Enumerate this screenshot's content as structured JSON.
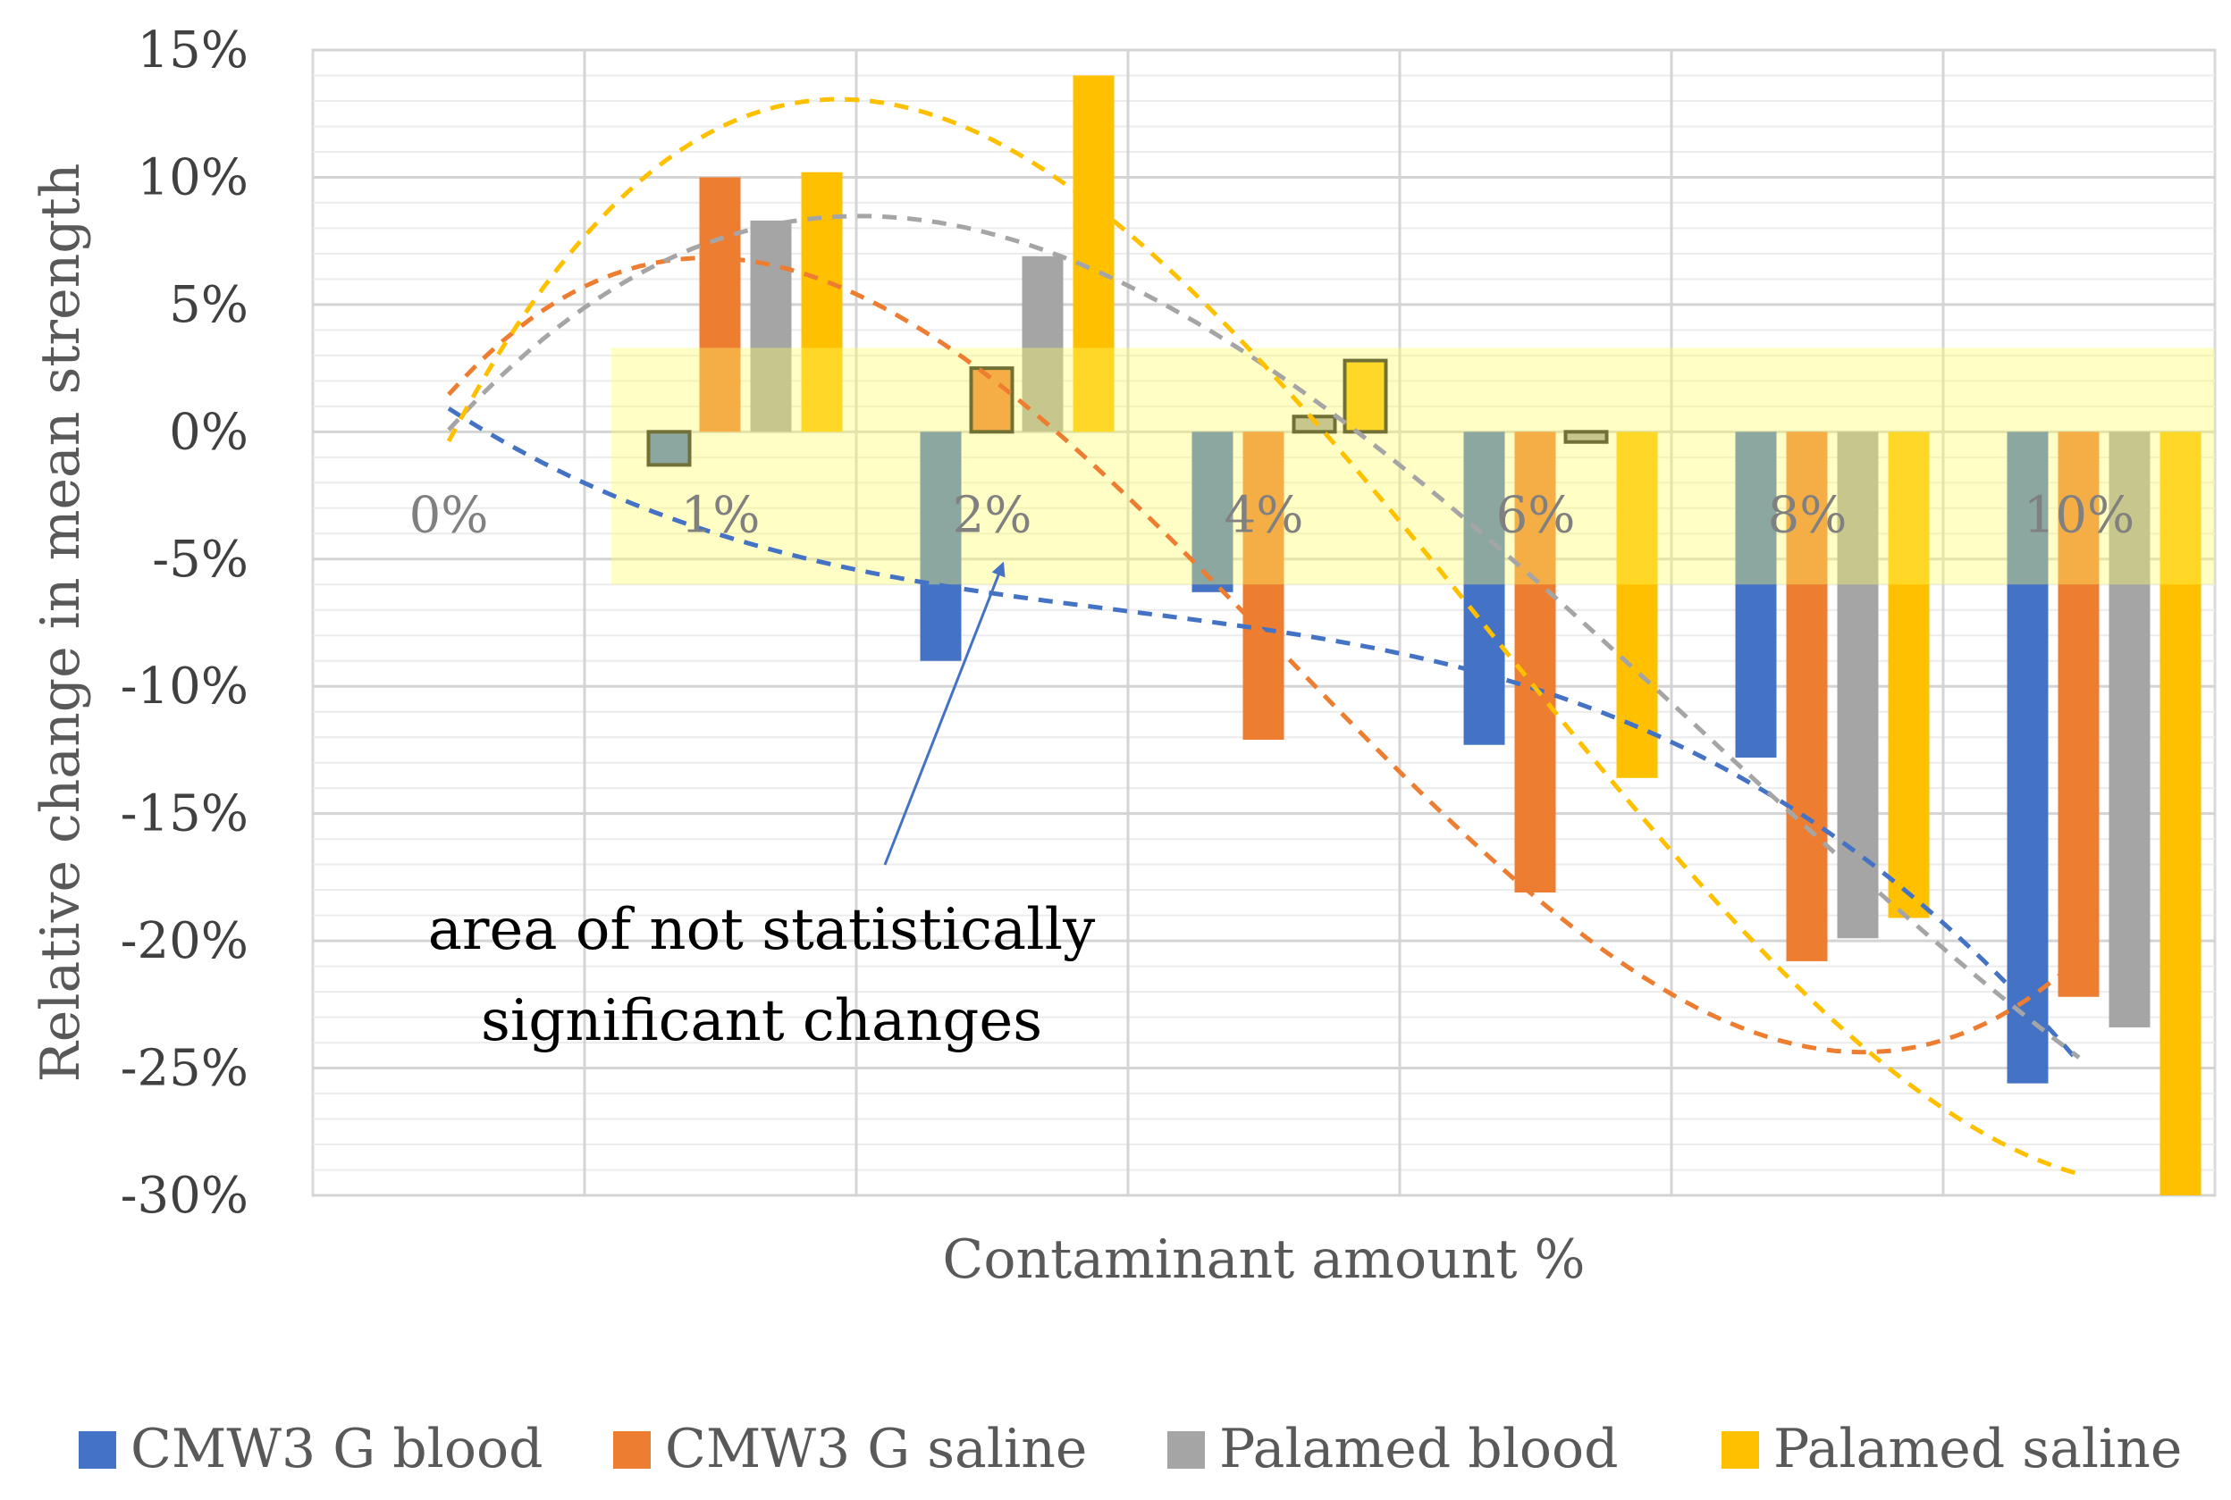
{
  "chart_data": {
    "type": "bar",
    "categories": [
      "0%",
      "1%",
      "2%",
      "4%",
      "6%",
      "8%",
      "10%"
    ],
    "series": [
      {
        "name": "CMW3 G blood",
        "color": "#4472C4",
        "values": [
          0,
          -1.3,
          -9.0,
          -6.3,
          -12.3,
          -12.8,
          -25.6
        ]
      },
      {
        "name": "CMW3 G saline",
        "color": "#ED7D31",
        "values": [
          0,
          10.0,
          2.5,
          -12.1,
          -18.1,
          -20.8,
          -22.2
        ]
      },
      {
        "name": "Palamed blood",
        "color": "#A5A5A5",
        "values": [
          0,
          8.3,
          6.9,
          0.6,
          -0.4,
          -19.9,
          -23.4
        ]
      },
      {
        "name": "Palamed saline",
        "color": "#FFC000",
        "values": [
          0,
          10.2,
          14.0,
          2.8,
          -13.6,
          -19.1,
          -30.0
        ]
      }
    ],
    "trendlines": [
      {
        "series": "CMW3 G blood",
        "type": "polynomial",
        "style": "dashed"
      },
      {
        "series": "CMW3 G saline",
        "type": "polynomial",
        "style": "dashed"
      },
      {
        "series": "Palamed blood",
        "type": "polynomial",
        "style": "dashed"
      },
      {
        "series": "Palamed saline",
        "type": "polynomial",
        "style": "dashed"
      }
    ],
    "yticks": [
      "15%",
      "10%",
      "5%",
      "0%",
      "-5%",
      "-10%",
      "-15%",
      "-20%",
      "-25%",
      "-30%"
    ],
    "ylim": [
      -30,
      15
    ],
    "y_unit": "%",
    "xlabel": "Contaminant amount %",
    "ylabel": "Relative change in mean strength",
    "grid": true,
    "legend_position": "bottom",
    "highlight_band": {
      "from": -6,
      "to": 3.3,
      "color": "#FFFF66"
    },
    "annotation": {
      "lines": [
        "area of not statistically",
        "significant changes"
      ],
      "arrow_to": {
        "category": "2%",
        "y": -4.8
      }
    }
  }
}
